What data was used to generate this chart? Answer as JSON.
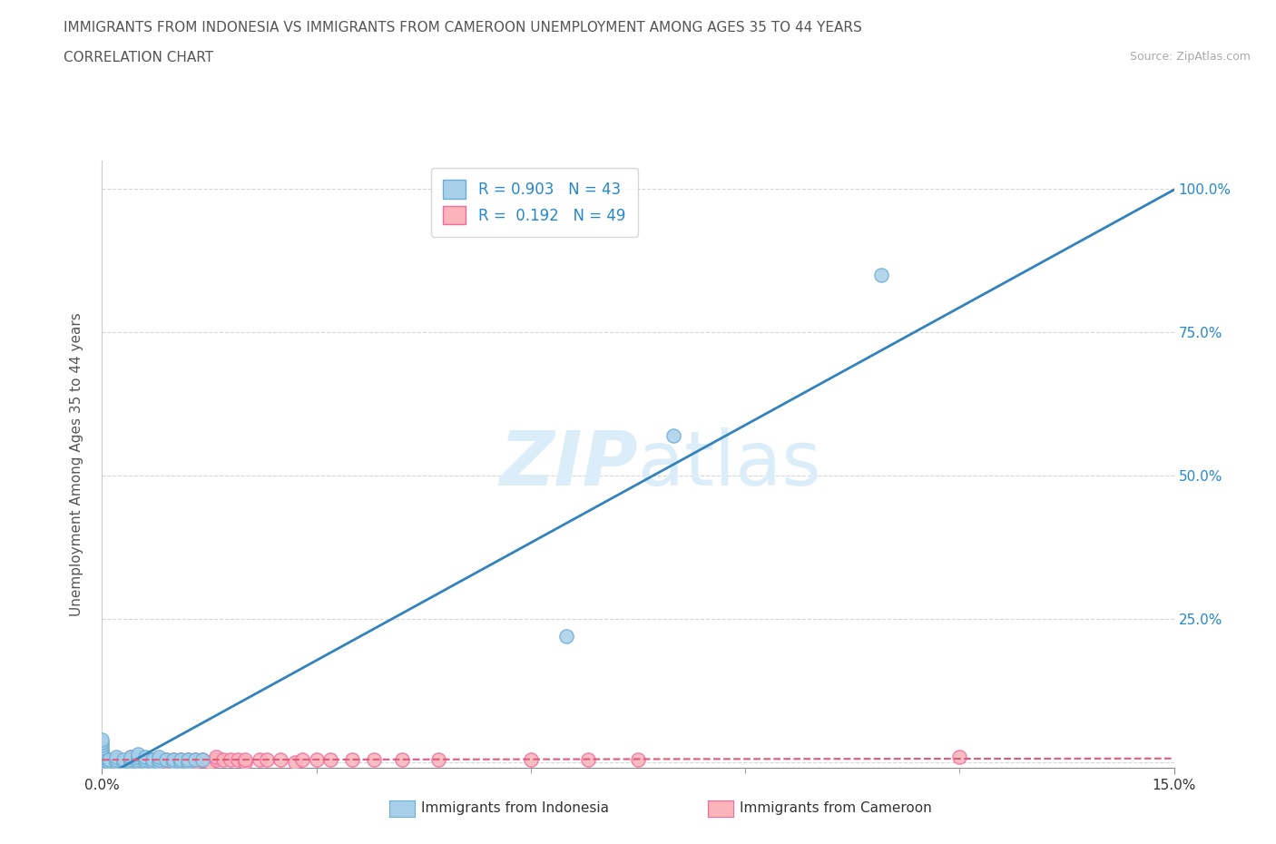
{
  "title_line1": "IMMIGRANTS FROM INDONESIA VS IMMIGRANTS FROM CAMEROON UNEMPLOYMENT AMONG AGES 35 TO 44 YEARS",
  "title_line2": "CORRELATION CHART",
  "source_text": "Source: ZipAtlas.com",
  "ylabel": "Unemployment Among Ages 35 to 44 years",
  "xlim": [
    0.0,
    0.15
  ],
  "ylim": [
    -0.01,
    1.05
  ],
  "indonesia_color": "#a8cfe8",
  "indonesia_edge_color": "#6baed6",
  "cameroon_color": "#fbb4b9",
  "cameroon_edge_color": "#f768a1",
  "regression_indonesia_color": "#3182bd",
  "regression_cameroon_color": "#e05a7a",
  "watermark_color": "#daedf8",
  "legend_R_indonesia": "0.903",
  "legend_N_indonesia": "43",
  "legend_R_cameroon": "0.192",
  "legend_N_cameroon": "49",
  "indonesia_x": [
    0.0,
    0.0,
    0.0,
    0.0,
    0.0,
    0.0,
    0.0,
    0.0,
    0.0,
    0.001,
    0.001,
    0.002,
    0.002,
    0.002,
    0.003,
    0.003,
    0.004,
    0.004,
    0.004,
    0.005,
    0.005,
    0.005,
    0.005,
    0.006,
    0.006,
    0.006,
    0.007,
    0.007,
    0.008,
    0.008,
    0.008,
    0.009,
    0.01,
    0.01,
    0.011,
    0.011,
    0.012,
    0.012,
    0.013,
    0.014,
    0.065,
    0.08,
    0.109
  ],
  "indonesia_y": [
    0.0,
    0.005,
    0.01,
    0.015,
    0.02,
    0.025,
    0.03,
    0.035,
    0.04,
    0.0,
    0.005,
    0.0,
    0.005,
    0.01,
    0.0,
    0.005,
    0.0,
    0.005,
    0.01,
    0.0,
    0.005,
    0.01,
    0.015,
    0.0,
    0.005,
    0.01,
    0.0,
    0.005,
    0.0,
    0.005,
    0.01,
    0.005,
    0.0,
    0.005,
    0.0,
    0.005,
    0.0,
    0.005,
    0.005,
    0.005,
    0.22,
    0.57,
    0.85
  ],
  "cameroon_x": [
    0.0,
    0.0,
    0.0,
    0.0,
    0.0,
    0.002,
    0.003,
    0.004,
    0.004,
    0.005,
    0.005,
    0.006,
    0.006,
    0.007,
    0.007,
    0.008,
    0.008,
    0.009,
    0.009,
    0.01,
    0.01,
    0.011,
    0.012,
    0.013,
    0.013,
    0.014,
    0.015,
    0.016,
    0.016,
    0.017,
    0.018,
    0.019,
    0.02,
    0.02,
    0.022,
    0.023,
    0.025,
    0.027,
    0.028,
    0.03,
    0.032,
    0.035,
    0.038,
    0.042,
    0.047,
    0.06,
    0.068,
    0.075,
    0.12
  ],
  "cameroon_y": [
    0.0,
    0.005,
    0.01,
    0.015,
    0.02,
    0.005,
    0.0,
    0.005,
    0.01,
    0.0,
    0.005,
    0.0,
    0.005,
    0.0,
    0.005,
    0.0,
    0.005,
    0.0,
    0.005,
    0.0,
    0.005,
    0.005,
    0.005,
    0.0,
    0.005,
    0.005,
    0.0,
    0.005,
    0.01,
    0.005,
    0.005,
    0.005,
    0.0,
    0.005,
    0.005,
    0.005,
    0.005,
    0.0,
    0.005,
    0.005,
    0.005,
    0.005,
    0.005,
    0.005,
    0.005,
    0.005,
    0.005,
    0.005,
    0.01
  ],
  "background_color": "#ffffff",
  "grid_color": "#bbbbbb",
  "axis_color": "#cccccc",
  "label_color": "#555555",
  "right_tick_color": "#2688c8"
}
